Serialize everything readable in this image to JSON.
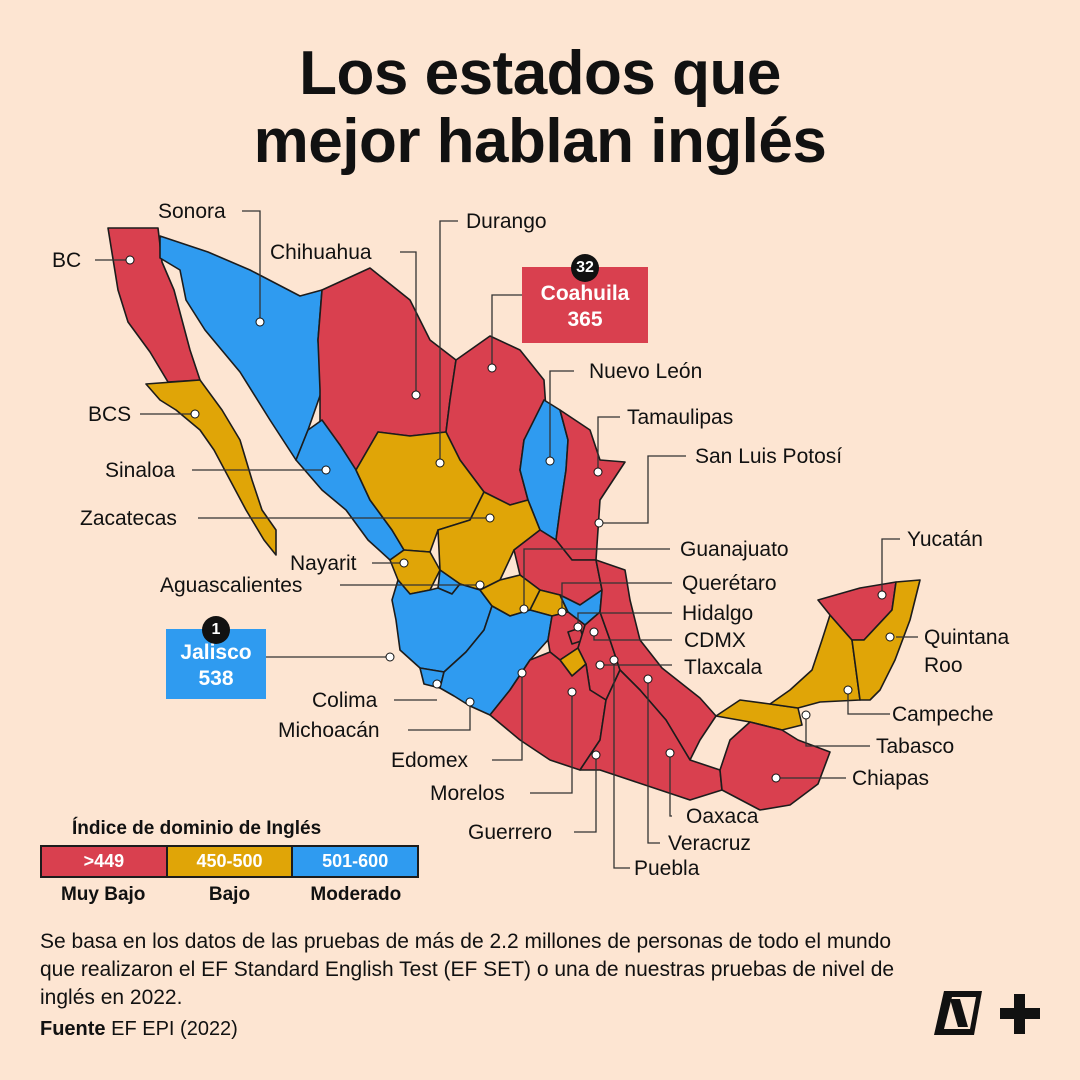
{
  "title": {
    "line1": "Los estados que",
    "line2": "mejor hablan inglés"
  },
  "colors": {
    "muy_bajo": "#d9404f",
    "bajo": "#e0a507",
    "moderado": "#2f9bf0",
    "background": "#fde5d2",
    "ink": "#111111"
  },
  "states": [
    {
      "name": "BC",
      "level": "muy_bajo"
    },
    {
      "name": "Sonora",
      "level": "moderado"
    },
    {
      "name": "Chihuahua",
      "level": "muy_bajo"
    },
    {
      "name": "Durango",
      "level": "bajo"
    },
    {
      "name": "Coahuila",
      "level": "muy_bajo"
    },
    {
      "name": "Nuevo León",
      "level": "moderado"
    },
    {
      "name": "Tamaulipas",
      "level": "muy_bajo"
    },
    {
      "name": "San Luis Potosí",
      "level": "muy_bajo"
    },
    {
      "name": "BCS",
      "level": "bajo"
    },
    {
      "name": "Sinaloa",
      "level": "moderado"
    },
    {
      "name": "Zacatecas",
      "level": "bajo"
    },
    {
      "name": "Nayarit",
      "level": "bajo"
    },
    {
      "name": "Aguascalientes",
      "level": "moderado"
    },
    {
      "name": "Jalisco",
      "level": "moderado"
    },
    {
      "name": "Guanajuato",
      "level": "bajo"
    },
    {
      "name": "Querétaro",
      "level": "bajo"
    },
    {
      "name": "Hidalgo",
      "level": "moderado"
    },
    {
      "name": "CDMX",
      "level": "muy_bajo"
    },
    {
      "name": "Tlaxcala",
      "level": "muy_bajo"
    },
    {
      "name": "Colima",
      "level": "moderado"
    },
    {
      "name": "Michoacán",
      "level": "moderado"
    },
    {
      "name": "Edomex",
      "level": "muy_bajo"
    },
    {
      "name": "Morelos",
      "level": "bajo"
    },
    {
      "name": "Guerrero",
      "level": "muy_bajo"
    },
    {
      "name": "Puebla",
      "level": "muy_bajo"
    },
    {
      "name": "Veracruz",
      "level": "muy_bajo"
    },
    {
      "name": "Oaxaca",
      "level": "muy_bajo"
    },
    {
      "name": "Chiapas",
      "level": "muy_bajo"
    },
    {
      "name": "Tabasco",
      "level": "bajo"
    },
    {
      "name": "Campeche",
      "level": "bajo"
    },
    {
      "name": "Yucatán",
      "level": "muy_bajo"
    },
    {
      "name": "Quintana",
      "level": "bajo"
    },
    {
      "name": "Roo",
      "level": "bajo"
    }
  ],
  "highlights": {
    "top": {
      "rank": "1",
      "state": "Jalisco",
      "score": "538"
    },
    "bottom": {
      "rank": "32",
      "state": "Coahuila",
      "score": "365"
    }
  },
  "legend": {
    "title": "Índice de dominio de Inglés",
    "ranges": [
      ">449",
      "450-500",
      "501-600"
    ],
    "names": [
      "Muy Bajo",
      "Bajo",
      "Moderado"
    ]
  },
  "note": "Se basa en los datos de las pruebas de más de 2.2 millones de personas de todo el mundo que realizaron el EF Standard English Test (EF SET) o una de nuestras pruebas de nivel de inglés en 2022.",
  "source": {
    "label": "Fuente",
    "text": "EF EPI (2022)"
  },
  "logo": {
    "icon": "nmas-logo-icon",
    "text": "N+"
  }
}
